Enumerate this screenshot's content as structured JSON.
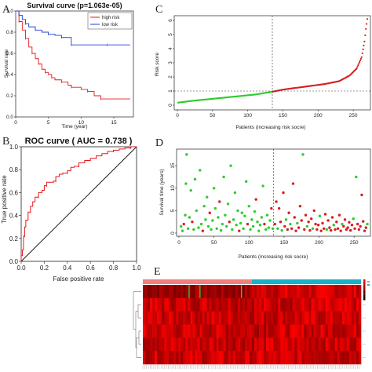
{
  "panels": {
    "A": {
      "letter": "A"
    },
    "B": {
      "letter": "B"
    },
    "C": {
      "letter": "C"
    },
    "D": {
      "letter": "D"
    },
    "E": {
      "letter": "E"
    }
  },
  "chart_data": [
    {
      "panel": "A",
      "type": "line",
      "title": "Survival curve (p=1.063e-05)",
      "xlabel": "Time (year)",
      "ylabel": "Survival rate",
      "xlim": [
        0,
        18
      ],
      "ylim": [
        0,
        1
      ],
      "xticks": [
        0,
        5,
        10,
        15
      ],
      "yticks": [
        0.0,
        0.2,
        0.4,
        0.6,
        0.8,
        1.0
      ],
      "legend": {
        "position": "top-right",
        "entries": [
          "high risk",
          "low risk"
        ]
      },
      "series": [
        {
          "name": "high risk",
          "color": "#e41a1c",
          "x": [
            0,
            0.5,
            1,
            1.5,
            2,
            2.5,
            3,
            3.5,
            4,
            4.5,
            5,
            5.5,
            6,
            7,
            8,
            8.5,
            10,
            11,
            12,
            13,
            17.5
          ],
          "y": [
            1.0,
            0.9,
            0.82,
            0.74,
            0.66,
            0.6,
            0.55,
            0.5,
            0.45,
            0.42,
            0.4,
            0.37,
            0.35,
            0.33,
            0.3,
            0.28,
            0.26,
            0.24,
            0.2,
            0.17,
            0.17
          ]
        },
        {
          "name": "low risk",
          "color": "#1f3cdb",
          "x": [
            0,
            0.5,
            1,
            1.5,
            2,
            3,
            4,
            5,
            6,
            7,
            8,
            8.5,
            10,
            14,
            17.5
          ],
          "y": [
            1.0,
            0.96,
            0.92,
            0.88,
            0.85,
            0.82,
            0.8,
            0.78,
            0.77,
            0.75,
            0.75,
            0.68,
            0.68,
            0.68,
            0.68
          ]
        }
      ]
    },
    {
      "panel": "B",
      "type": "line",
      "title": "ROC curve ( AUC = 0.738 )",
      "xlabel": "False positive rate",
      "ylabel": "True positive rate",
      "xlim": [
        0,
        1
      ],
      "ylim": [
        0,
        1
      ],
      "xticks": [
        "0.0",
        "0.2",
        "0.4",
        "0.6",
        "0.8",
        "1.0"
      ],
      "yticks": [
        "0.0",
        "0.2",
        "0.4",
        "0.6",
        "0.8",
        "1.0"
      ],
      "series": [
        {
          "name": "ROC",
          "color": "#e41a1c",
          "x": [
            0,
            0.01,
            0.02,
            0.03,
            0.04,
            0.06,
            0.08,
            0.1,
            0.12,
            0.15,
            0.18,
            0.2,
            0.22,
            0.25,
            0.28,
            0.3,
            0.33,
            0.36,
            0.4,
            0.43,
            0.46,
            0.5,
            0.55,
            0.6,
            0.65,
            0.7,
            0.75,
            0.8,
            0.85,
            0.9,
            0.95,
            1.0
          ],
          "y": [
            0,
            0.05,
            0.1,
            0.22,
            0.3,
            0.36,
            0.43,
            0.48,
            0.52,
            0.56,
            0.6,
            0.62,
            0.66,
            0.69,
            0.69,
            0.7,
            0.74,
            0.76,
            0.77,
            0.79,
            0.82,
            0.83,
            0.86,
            0.88,
            0.9,
            0.92,
            0.94,
            0.96,
            0.97,
            0.98,
            0.99,
            1.0
          ]
        }
      ],
      "reference_line": {
        "from": [
          0,
          0
        ],
        "to": [
          1,
          1
        ],
        "color": "#111111"
      }
    },
    {
      "panel": "C",
      "type": "scatter",
      "title": "",
      "xlabel": "Patients (increasing risk socre)",
      "ylabel": "Risk score",
      "xlim": [
        0,
        270
      ],
      "ylim": [
        0,
        6
      ],
      "xticks": [
        0,
        50,
        100,
        150,
        200,
        250
      ],
      "yticks": [
        0,
        1,
        2,
        3,
        4,
        5,
        6
      ],
      "n_patients": 270,
      "cutoff_index": 135,
      "cutoff_value": 1.0,
      "low_risk_color": "#2ecc2e",
      "high_risk_color": "#d62020",
      "curve_points": [
        [
          1,
          0.18
        ],
        [
          20,
          0.3
        ],
        [
          50,
          0.45
        ],
        [
          80,
          0.6
        ],
        [
          110,
          0.75
        ],
        [
          135,
          0.95
        ],
        [
          150,
          1.1
        ],
        [
          180,
          1.3
        ],
        [
          210,
          1.5
        ],
        [
          230,
          1.7
        ],
        [
          245,
          2.1
        ],
        [
          255,
          2.6
        ],
        [
          262,
          3.4
        ],
        [
          266,
          4.5
        ],
        [
          268,
          5.4
        ],
        [
          270,
          6.1
        ]
      ]
    },
    {
      "panel": "D",
      "type": "scatter",
      "title": "",
      "xlabel": "Patients (increasing risk socre)",
      "ylabel": "Survival time (years)",
      "xlim": [
        0,
        270
      ],
      "ylim": [
        0,
        18
      ],
      "xticks": [
        0,
        50,
        100,
        150,
        200,
        250
      ],
      "yticks": [
        0,
        5,
        10,
        15
      ],
      "cutoff_index": 135,
      "points": [
        [
          3,
          1.5,
          "g"
        ],
        [
          5,
          0.5,
          "g"
        ],
        [
          7,
          2.0,
          "r"
        ],
        [
          9,
          4.0,
          "g"
        ],
        [
          10,
          11.0,
          "g"
        ],
        [
          11,
          17.5,
          "g"
        ],
        [
          13,
          1.0,
          "g"
        ],
        [
          15,
          3.5,
          "g"
        ],
        [
          17,
          9.5,
          "g"
        ],
        [
          19,
          2.5,
          "r"
        ],
        [
          21,
          0.8,
          "g"
        ],
        [
          23,
          12.0,
          "g"
        ],
        [
          25,
          5.0,
          "g"
        ],
        [
          28,
          1.2,
          "g"
        ],
        [
          30,
          14.0,
          "g"
        ],
        [
          32,
          2.0,
          "g"
        ],
        [
          34,
          0.5,
          "r"
        ],
        [
          36,
          6.0,
          "g"
        ],
        [
          38,
          3.0,
          "g"
        ],
        [
          40,
          8.0,
          "g"
        ],
        [
          42,
          1.5,
          "g"
        ],
        [
          44,
          4.5,
          "r"
        ],
        [
          46,
          0.8,
          "g"
        ],
        [
          48,
          2.8,
          "g"
        ],
        [
          50,
          10.0,
          "g"
        ],
        [
          52,
          5.5,
          "g"
        ],
        [
          54,
          1.0,
          "g"
        ],
        [
          56,
          3.5,
          "g"
        ],
        [
          58,
          7.0,
          "r"
        ],
        [
          60,
          0.6,
          "g"
        ],
        [
          62,
          2.0,
          "g"
        ],
        [
          64,
          12.5,
          "g"
        ],
        [
          66,
          4.0,
          "g"
        ],
        [
          68,
          1.5,
          "g"
        ],
        [
          70,
          6.5,
          "g"
        ],
        [
          72,
          2.5,
          "r"
        ],
        [
          74,
          15.0,
          "g"
        ],
        [
          76,
          0.8,
          "g"
        ],
        [
          78,
          3.0,
          "g"
        ],
        [
          80,
          9.0,
          "g"
        ],
        [
          82,
          1.8,
          "g"
        ],
        [
          84,
          5.0,
          "g"
        ],
        [
          86,
          0.5,
          "r"
        ],
        [
          88,
          2.2,
          "g"
        ],
        [
          90,
          4.5,
          "g"
        ],
        [
          92,
          1.0,
          "g"
        ],
        [
          94,
          3.8,
          "g"
        ],
        [
          96,
          11.5,
          "g"
        ],
        [
          98,
          2.0,
          "r"
        ],
        [
          100,
          6.0,
          "g"
        ],
        [
          102,
          0.8,
          "g"
        ],
        [
          104,
          3.0,
          "g"
        ],
        [
          106,
          1.5,
          "g"
        ],
        [
          108,
          4.8,
          "g"
        ],
        [
          110,
          7.5,
          "r"
        ],
        [
          112,
          2.5,
          "g"
        ],
        [
          114,
          0.5,
          "g"
        ],
        [
          116,
          1.8,
          "g"
        ],
        [
          118,
          3.5,
          "g"
        ],
        [
          120,
          10.5,
          "g"
        ],
        [
          122,
          2.0,
          "r"
        ],
        [
          124,
          0.8,
          "g"
        ],
        [
          126,
          4.0,
          "g"
        ],
        [
          128,
          1.2,
          "g"
        ],
        [
          130,
          2.8,
          "g"
        ],
        [
          132,
          5.5,
          "r"
        ],
        [
          134,
          1.0,
          "g"
        ],
        [
          137,
          2.0,
          "r"
        ],
        [
          139,
          7.0,
          "r"
        ],
        [
          141,
          1.0,
          "g"
        ],
        [
          143,
          5.5,
          "r"
        ],
        [
          145,
          2.5,
          "r"
        ],
        [
          147,
          0.6,
          "g"
        ],
        [
          149,
          9.0,
          "r"
        ],
        [
          151,
          1.5,
          "r"
        ],
        [
          153,
          3.0,
          "g"
        ],
        [
          155,
          0.8,
          "r"
        ],
        [
          157,
          4.5,
          "r"
        ],
        [
          159,
          2.0,
          "g"
        ],
        [
          161,
          1.0,
          "r"
        ],
        [
          163,
          11.0,
          "r"
        ],
        [
          165,
          3.5,
          "r"
        ],
        [
          167,
          0.5,
          "r"
        ],
        [
          169,
          2.2,
          "g"
        ],
        [
          171,
          1.2,
          "r"
        ],
        [
          173,
          6.0,
          "r"
        ],
        [
          175,
          2.8,
          "r"
        ],
        [
          177,
          17.5,
          "g"
        ],
        [
          179,
          0.8,
          "r"
        ],
        [
          181,
          4.0,
          "r"
        ],
        [
          183,
          1.5,
          "g"
        ],
        [
          185,
          2.5,
          "r"
        ],
        [
          187,
          0.6,
          "r"
        ],
        [
          189,
          3.2,
          "r"
        ],
        [
          191,
          1.0,
          "g"
        ],
        [
          193,
          5.0,
          "r"
        ],
        [
          195,
          2.0,
          "r"
        ],
        [
          197,
          0.8,
          "r"
        ],
        [
          199,
          1.8,
          "r"
        ],
        [
          201,
          3.8,
          "g"
        ],
        [
          203,
          0.5,
          "r"
        ],
        [
          205,
          2.2,
          "r"
        ],
        [
          207,
          1.0,
          "r"
        ],
        [
          209,
          4.2,
          "r"
        ],
        [
          211,
          0.8,
          "g"
        ],
        [
          213,
          2.8,
          "r"
        ],
        [
          215,
          1.2,
          "r"
        ],
        [
          217,
          0.6,
          "r"
        ],
        [
          219,
          3.5,
          "r"
        ],
        [
          221,
          1.8,
          "g"
        ],
        [
          223,
          0.8,
          "r"
        ],
        [
          225,
          2.5,
          "r"
        ],
        [
          227,
          1.0,
          "r"
        ],
        [
          229,
          4.0,
          "r"
        ],
        [
          231,
          0.5,
          "r"
        ],
        [
          233,
          2.0,
          "g"
        ],
        [
          235,
          1.5,
          "r"
        ],
        [
          237,
          3.0,
          "r"
        ],
        [
          239,
          0.8,
          "r"
        ],
        [
          241,
          1.2,
          "r"
        ],
        [
          243,
          2.4,
          "r"
        ],
        [
          245,
          0.6,
          "r"
        ],
        [
          247,
          1.8,
          "r"
        ],
        [
          249,
          3.2,
          "g"
        ],
        [
          251,
          1.0,
          "r"
        ],
        [
          253,
          12.5,
          "g"
        ],
        [
          255,
          2.0,
          "r"
        ],
        [
          257,
          0.8,
          "r"
        ],
        [
          259,
          1.5,
          "r"
        ],
        [
          261,
          8.5,
          "r"
        ],
        [
          263,
          2.6,
          "r"
        ],
        [
          265,
          0.5,
          "r"
        ],
        [
          267,
          1.2,
          "r"
        ],
        [
          269,
          2.0,
          "g"
        ]
      ],
      "alive_color": "#2ecc2e",
      "dead_color": "#d62020"
    },
    {
      "panel": "E",
      "type": "heatmap",
      "title": "",
      "rows": 6,
      "columns": 270,
      "cutoff_index": 135,
      "annotation_colors": {
        "low": "#f08080",
        "high": "#1ab0c8"
      },
      "scale_colors": [
        "#000000",
        "#ff0000"
      ]
    }
  ]
}
